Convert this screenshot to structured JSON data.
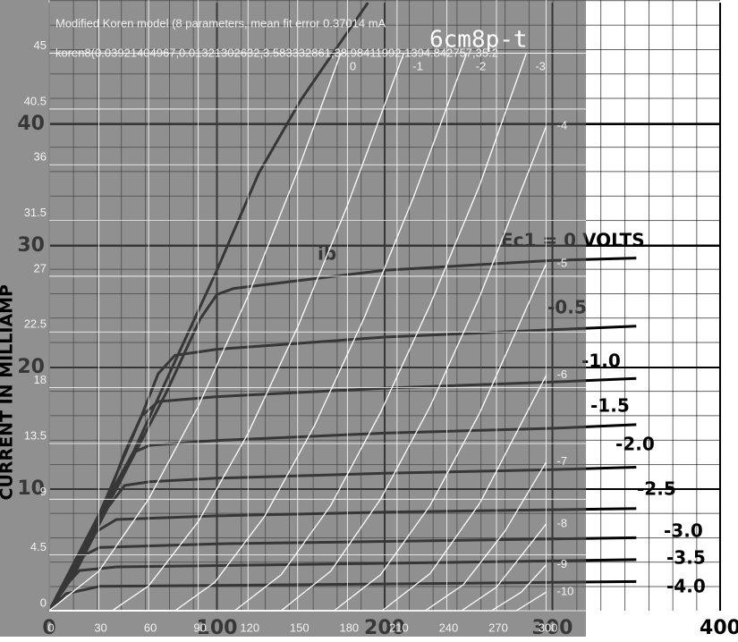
{
  "chart_data": [
    {
      "type": "line",
      "y_label": "CURRENT IN MILLIAMP",
      "xlim": [
        0,
        400
      ],
      "ylim": [
        0,
        50
      ],
      "xticks": [
        0,
        100,
        200,
        300,
        400
      ],
      "yticks": [
        10,
        20,
        30,
        40
      ],
      "grid": true,
      "series": [
        {
          "name": "ib",
          "color": "#000000",
          "x": [
            0,
            20,
            50,
            80,
            100,
            125,
            150,
            175,
            190
          ],
          "values": [
            0,
            5,
            13,
            22,
            28,
            36,
            42,
            47,
            50
          ]
        },
        {
          "name": "Ec1 = 0 VOLTS",
          "color": "#000000",
          "x": [
            0,
            40,
            70,
            90,
            100,
            110,
            200,
            300,
            350
          ],
          "values": [
            0,
            10,
            18,
            24,
            26,
            26.5,
            28,
            28.8,
            29
          ]
        },
        {
          "name": "-0.5",
          "color": "#000000",
          "x": [
            0,
            30,
            55,
            65,
            75,
            100,
            200,
            300,
            350
          ],
          "values": [
            0,
            8,
            16,
            19.5,
            21,
            21.5,
            22.5,
            23.1,
            23.4
          ]
        },
        {
          "name": "-1.0",
          "color": "#000000",
          "x": [
            0,
            30,
            45,
            55,
            65,
            100,
            200,
            300,
            350
          ],
          "values": [
            0,
            7.5,
            13,
            16,
            17.2,
            17.6,
            18.3,
            18.8,
            19.1
          ]
        },
        {
          "name": "-1.5",
          "color": "#000000",
          "x": [
            0,
            25,
            40,
            50,
            60,
            100,
            200,
            300,
            350
          ],
          "values": [
            0,
            6,
            10.5,
            13,
            13.6,
            14,
            14.6,
            15,
            15.3
          ]
        },
        {
          "name": "-2.0",
          "color": "#000000",
          "x": [
            0,
            20,
            35,
            45,
            60,
            100,
            200,
            300,
            350
          ],
          "values": [
            0,
            4.5,
            8.5,
            10.3,
            10.6,
            10.9,
            11.3,
            11.6,
            11.8
          ]
        },
        {
          "name": "-2.5",
          "color": "#000000",
          "x": [
            0,
            15,
            28,
            40,
            100,
            200,
            300,
            350
          ],
          "values": [
            0,
            3,
            6.5,
            7.5,
            7.8,
            8.1,
            8.3,
            8.4
          ]
        },
        {
          "name": "-3.0",
          "color": "#000000",
          "x": [
            0,
            10,
            20,
            30,
            100,
            200,
            300,
            350
          ],
          "values": [
            0,
            2,
            4.5,
            5.2,
            5.5,
            5.7,
            5.9,
            6
          ]
        },
        {
          "name": "-3.5",
          "color": "#000000",
          "x": [
            0,
            8,
            18,
            40,
            200,
            350
          ],
          "values": [
            0,
            1.8,
            3.3,
            3.6,
            3.9,
            4.2
          ]
        },
        {
          "name": "-4.0",
          "color": "#000000",
          "x": [
            0,
            10,
            30,
            200,
            350
          ],
          "values": [
            0,
            1.4,
            2,
            2.2,
            2.4
          ]
        }
      ]
    },
    {
      "type": "line",
      "title": "6cm8p-t",
      "subtitle": "Modified Koren model (8 parameters, mean fit error 0.37014 mA",
      "annotations": [
        "koren8(0.03921404967,0.01321302632,3.583332861,38.98411992,1394.842757,35.2"
      ],
      "xlim": [
        0,
        324
      ],
      "ylim": [
        0,
        49.3
      ],
      "xticks": [
        0,
        30,
        60,
        90,
        120,
        150,
        180,
        210,
        240,
        270,
        300
      ],
      "yticks": [
        0,
        4.5,
        9,
        13.5,
        18,
        22.5,
        27,
        31.5,
        36,
        40.5,
        45
      ],
      "grid": true,
      "series": [
        {
          "name": "0",
          "color": "#ffffff",
          "x": [
            0,
            30,
            60,
            90,
            120,
            150,
            176
          ],
          "values": [
            0,
            3.2,
            9,
            16.5,
            25.4,
            35.5,
            45
          ]
        },
        {
          "name": "-1",
          "color": "#ffffff",
          "x": [
            0,
            38,
            60,
            90,
            120,
            150,
            180,
            214
          ],
          "values": [
            0,
            0,
            2,
            7.2,
            14.3,
            22.9,
            32.7,
            45
          ]
        },
        {
          "name": "-2",
          "color": "#ffffff",
          "x": [
            0,
            76,
            100,
            130,
            160,
            190,
            220,
            252
          ],
          "values": [
            0,
            0,
            2.3,
            7.6,
            14.9,
            23.6,
            33.4,
            45
          ]
        },
        {
          "name": "-3",
          "color": "#ffffff",
          "x": [
            0,
            112,
            140,
            170,
            200,
            230,
            260,
            288
          ],
          "values": [
            0,
            0,
            2.9,
            8.5,
            16,
            24.7,
            34.4,
            45
          ]
        },
        {
          "name": "-4",
          "color": "#ffffff",
          "x": [
            0,
            140,
            170,
            200,
            230,
            260,
            300
          ],
          "values": [
            0,
            0,
            3.2,
            9,
            16.5,
            25.4,
            39.1
          ]
        },
        {
          "name": "-5",
          "color": "#ffffff",
          "x": [
            0,
            172,
            200,
            230,
            260,
            300
          ],
          "values": [
            0,
            0,
            2.9,
            8.5,
            16,
            28
          ]
        },
        {
          "name": "-6",
          "color": "#ffffff",
          "x": [
            0,
            201,
            230,
            260,
            300
          ],
          "values": [
            0,
            0,
            3,
            8.7,
            19
          ]
        },
        {
          "name": "-7",
          "color": "#ffffff",
          "x": [
            0,
            227,
            250,
            275,
            300
          ],
          "values": [
            0,
            0,
            2.1,
            6.4,
            12
          ]
        },
        {
          "name": "-8",
          "color": "#ffffff",
          "x": [
            0,
            249,
            270,
            300
          ],
          "values": [
            0,
            0,
            1.9,
            7
          ]
        },
        {
          "name": "-9",
          "color": "#ffffff",
          "x": [
            0,
            267,
            285,
            300
          ],
          "values": [
            0,
            0,
            1.5,
            3.7
          ]
        },
        {
          "name": "-10",
          "color": "#ffffff",
          "x": [
            0,
            282,
            300
          ],
          "values": [
            0,
            0,
            1.5
          ]
        }
      ]
    }
  ]
}
